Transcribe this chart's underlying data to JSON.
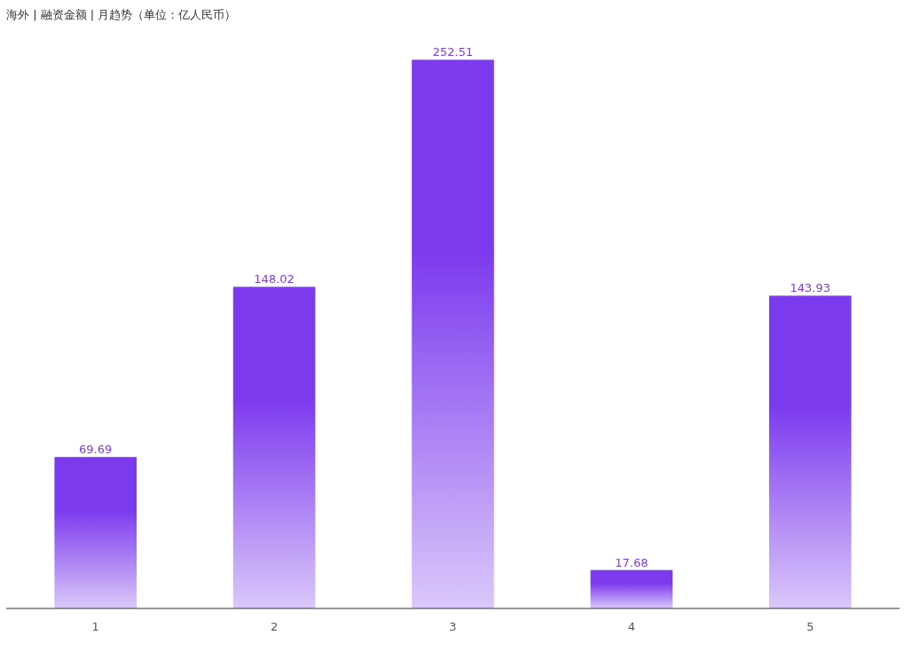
{
  "chart_data": {
    "type": "bar",
    "title": "海外 | 融资金额 | 月趋势（单位：亿人民币）",
    "categories": [
      "1",
      "2",
      "3",
      "4",
      "5"
    ],
    "values": [
      69.69,
      148.02,
      252.51,
      17.68,
      143.93
    ],
    "color": "#7c3aee",
    "data_labels": true
  }
}
